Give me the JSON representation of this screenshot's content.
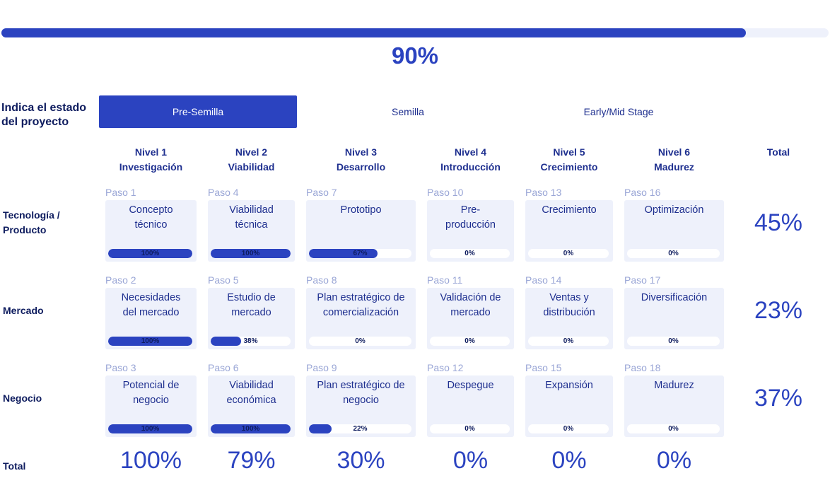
{
  "overall": {
    "value": 0.9,
    "label": "90%"
  },
  "stage": {
    "label": "Indica el estado del proyecto",
    "tabs": [
      {
        "label": "Pre-Semilla",
        "active": true
      },
      {
        "label": "Semilla",
        "active": false
      },
      {
        "label": "Early/Mid Stage",
        "active": false
      }
    ]
  },
  "levels": [
    {
      "line1": "Nivel 1",
      "line2": "Investigación"
    },
    {
      "line1": "Nivel 2",
      "line2": "Viabilidad"
    },
    {
      "line1": "Nivel 3",
      "line2": "Desarrollo"
    },
    {
      "line1": "Nivel 4",
      "line2": "Introducción"
    },
    {
      "line1": "Nivel 5",
      "line2": "Crecimiento"
    },
    {
      "line1": "Nivel 6",
      "line2": "Madurez"
    }
  ],
  "total_header": "Total",
  "rows": [
    {
      "label_line1": "Tecnología /",
      "label_line2": "Producto",
      "total": "45%",
      "steps": [
        {
          "paso": "Paso 1",
          "line1": "Concepto",
          "line2": "técnico",
          "progress": 1.0,
          "pct": "100%"
        },
        {
          "paso": "Paso 4",
          "line1": "Viabilidad",
          "line2": "técnica",
          "progress": 1.0,
          "pct": "100%"
        },
        {
          "paso": "Paso 7",
          "line1": "Prototipo",
          "line2": "",
          "progress": 0.67,
          "pct": "67%"
        },
        {
          "paso": "Paso 10",
          "line1": "Pre-",
          "line2": "producción",
          "progress": 0,
          "pct": "0%"
        },
        {
          "paso": "Paso 13",
          "line1": "Crecimiento",
          "line2": "",
          "progress": 0,
          "pct": "0%"
        },
        {
          "paso": "Paso 16",
          "line1": "Optimización",
          "line2": "",
          "progress": 0,
          "pct": "0%"
        }
      ]
    },
    {
      "label_line1": "Mercado",
      "label_line2": "",
      "total": "23%",
      "steps": [
        {
          "paso": "Paso 2",
          "line1": "Necesidades",
          "line2": "del mercado",
          "progress": 1.0,
          "pct": "100%"
        },
        {
          "paso": "Paso 5",
          "line1": "Estudio de",
          "line2": "mercado",
          "progress": 0.38,
          "pct": "38%"
        },
        {
          "paso": "Paso 8",
          "line1": "Plan estratégico de",
          "line2": "comercialización",
          "progress": 0,
          "pct": "0%"
        },
        {
          "paso": "Paso 11",
          "line1": "Validación de",
          "line2": "mercado",
          "progress": 0,
          "pct": "0%"
        },
        {
          "paso": "Paso 14",
          "line1": "Ventas y",
          "line2": "distribución",
          "progress": 0,
          "pct": "0%"
        },
        {
          "paso": "Paso 17",
          "line1": "Diversificación",
          "line2": "",
          "progress": 0,
          "pct": "0%"
        }
      ]
    },
    {
      "label_line1": "Negocio",
      "label_line2": "",
      "total": "37%",
      "steps": [
        {
          "paso": "Paso 3",
          "line1": "Potencial de",
          "line2": "negocio",
          "progress": 1.0,
          "pct": "100%"
        },
        {
          "paso": "Paso 6",
          "line1": "Viabilidad",
          "line2": "económica",
          "progress": 1.0,
          "pct": "100%"
        },
        {
          "paso": "Paso 9",
          "line1": "Plan estratégico de",
          "line2": "negocio",
          "progress": 0.22,
          "pct": "22%"
        },
        {
          "paso": "Paso 12",
          "line1": "Despegue",
          "line2": "",
          "progress": 0,
          "pct": "0%"
        },
        {
          "paso": "Paso 15",
          "line1": "Expansión",
          "line2": "",
          "progress": 0,
          "pct": "0%"
        },
        {
          "paso": "Paso 18",
          "line1": "Madurez",
          "line2": "",
          "progress": 0,
          "pct": "0%"
        }
      ]
    }
  ],
  "totals_row": {
    "label": "Total",
    "values": [
      "100%",
      "79%",
      "30%",
      "0%",
      "0%",
      "0%"
    ]
  },
  "colors": {
    "accent": "#2b43c0",
    "card_bg": "#eef1fb",
    "text": "#0d1b5e",
    "muted": "#9aa6d6"
  }
}
